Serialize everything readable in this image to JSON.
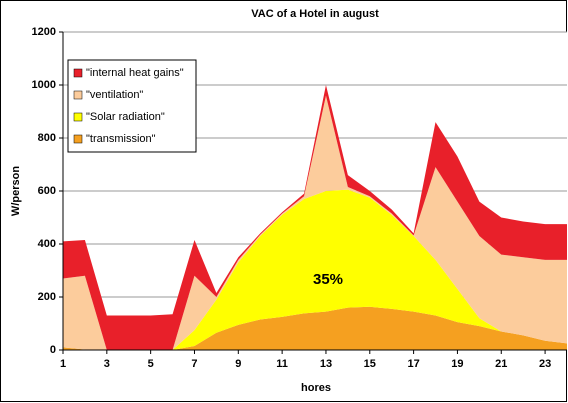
{
  "chart_data": {
    "type": "stacked_area",
    "title": "VAC of a Hotel in august",
    "x_label": "hores",
    "y_label": "W/person",
    "annotation": "35%",
    "x": [
      1,
      2,
      3,
      4,
      5,
      6,
      7,
      8,
      9,
      10,
      11,
      12,
      13,
      14,
      15,
      16,
      17,
      18,
      19,
      20,
      21,
      22,
      23,
      24
    ],
    "xlim": [
      1,
      24
    ],
    "xticks": [
      1,
      3,
      5,
      7,
      9,
      11,
      13,
      15,
      17,
      19,
      21,
      23
    ],
    "ylim": [
      0,
      1200
    ],
    "yticks": [
      0,
      200,
      400,
      600,
      800,
      1000,
      1200
    ],
    "grid": true,
    "legend": "upper left",
    "series": [
      {
        "name": "\"internal heat gains\"",
        "color": "#e8202a",
        "values": [
          140,
          135,
          130,
          130,
          130,
          135,
          135,
          15,
          10,
          5,
          5,
          10,
          40,
          45,
          20,
          15,
          8,
          170,
          170,
          130,
          140,
          135,
          135,
          135
        ]
      },
      {
        "name": "\"ventilation\"",
        "color": "#fccc9c",
        "values": [
          260,
          278,
          0,
          0,
          0,
          0,
          205,
          10,
          10,
          5,
          5,
          10,
          360,
          10,
          5,
          5,
          2,
          350,
          330,
          310,
          290,
          295,
          305,
          315
        ]
      },
      {
        "name": "\"Solar radiation\"",
        "color": "#ffff00",
        "values": [
          0,
          0,
          0,
          0,
          0,
          0,
          60,
          125,
          235,
          315,
          385,
          432,
          455,
          445,
          412,
          355,
          285,
          210,
          125,
          30,
          0,
          0,
          0,
          0
        ]
      },
      {
        "name": "\"transmission\"",
        "color": "#f5a020",
        "values": [
          10,
          2,
          0,
          0,
          0,
          0,
          15,
          65,
          95,
          115,
          125,
          138,
          145,
          160,
          163,
          155,
          145,
          130,
          105,
          90,
          70,
          55,
          35,
          25
        ]
      }
    ]
  }
}
